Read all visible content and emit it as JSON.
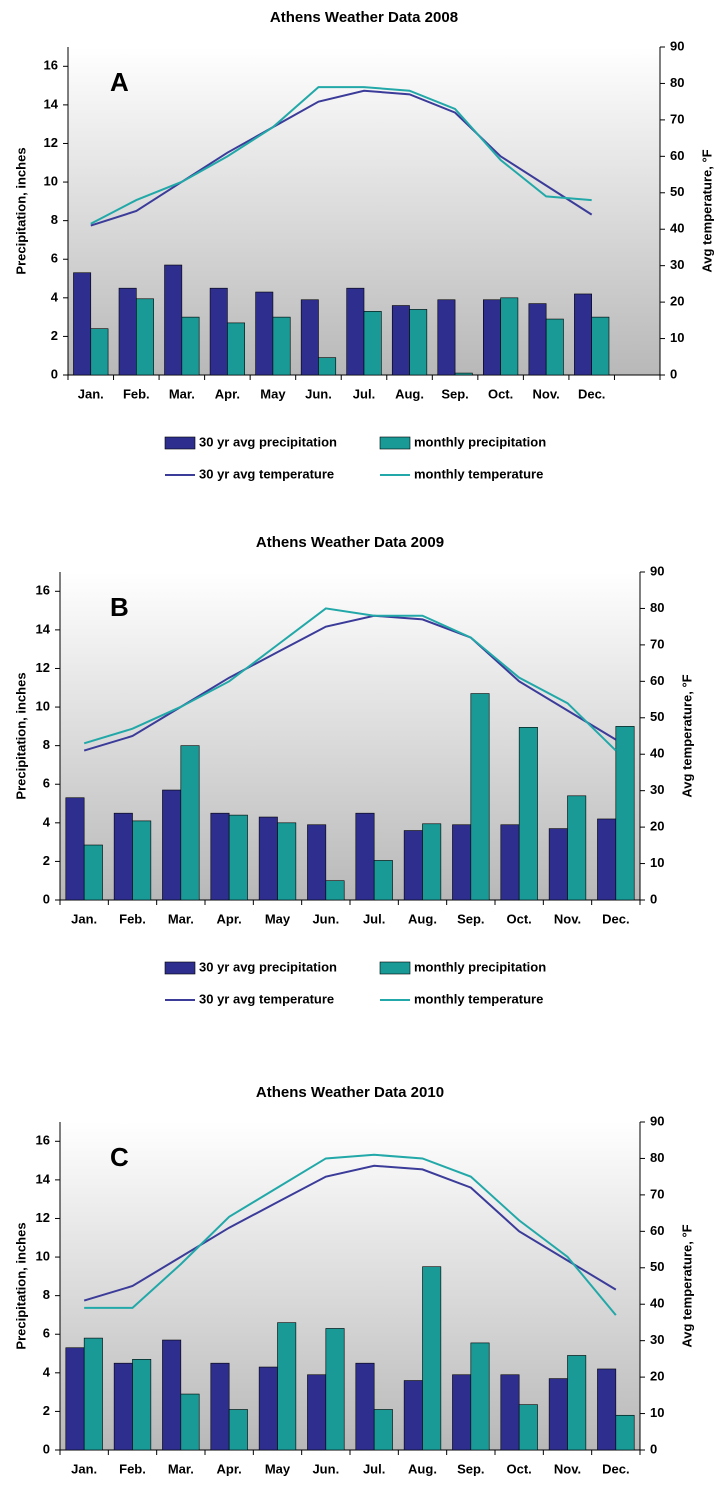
{
  "chart_data": [
    {
      "type": "bar",
      "title": "Athens Weather Data 2008",
      "label": "A",
      "ylabel": "Precipitation, inches",
      "y2label": "Avg temperature, °F",
      "categories": [
        "Jan.",
        "Feb.",
        "Mar.",
        "Apr.",
        "May",
        "Jun.",
        "Jul.",
        "Aug.",
        "Sep.",
        "Oct.",
        "Nov.",
        "Dec.",
        null
      ],
      "series": [
        {
          "name": "30 yr avg precipitation",
          "type": "bar",
          "color": "#2e2e8f",
          "values": [
            5.3,
            4.5,
            5.7,
            4.5,
            4.3,
            3.9,
            4.5,
            3.6,
            3.9,
            3.9,
            3.7,
            4.2,
            null
          ]
        },
        {
          "name": "monthly precipitation",
          "type": "bar",
          "color": "#1a9a96",
          "values": [
            2.4,
            3.95,
            3.0,
            2.7,
            3.0,
            0.9,
            3.3,
            3.4,
            0.1,
            4.0,
            2.9,
            3.0,
            null
          ]
        },
        {
          "name": "30 yr avg temperature",
          "type": "line",
          "axis": "y2",
          "color": "#3b3b9a",
          "values": [
            41,
            45,
            53,
            61,
            68,
            75,
            78,
            77,
            72,
            60,
            52,
            44,
            null
          ]
        },
        {
          "name": "monthly temperature",
          "type": "line",
          "axis": "y2",
          "color": "#22a8a8",
          "values": [
            41.5,
            48,
            53,
            60,
            68,
            79,
            79,
            78,
            73,
            59,
            49,
            48,
            null
          ]
        }
      ],
      "ylim": [
        0,
        17
      ],
      "yticks": [
        0,
        2,
        4,
        6,
        8,
        10,
        12,
        14,
        16
      ],
      "y2lim": [
        0,
        90
      ],
      "y2ticks": [
        0,
        10,
        20,
        30,
        40,
        50,
        60,
        70,
        80,
        90
      ]
    },
    {
      "type": "bar",
      "title": "Athens Weather Data 2009",
      "label": "B",
      "ylabel": "Precipitation, inches",
      "y2label": "Avg temperature, °F",
      "categories": [
        "Jan.",
        "Feb.",
        "Mar.",
        "Apr.",
        "May",
        "Jun.",
        "Jul.",
        "Aug.",
        "Sep.",
        "Oct.",
        "Nov.",
        "Dec."
      ],
      "series": [
        {
          "name": "30 yr avg precipitation",
          "type": "bar",
          "color": "#2e2e8f",
          "values": [
            5.3,
            4.5,
            5.7,
            4.5,
            4.3,
            3.9,
            4.5,
            3.6,
            3.9,
            3.9,
            3.7,
            4.2
          ]
        },
        {
          "name": "monthly precipitation",
          "type": "bar",
          "color": "#1a9a96",
          "values": [
            2.85,
            4.1,
            8.0,
            4.4,
            4.0,
            1.0,
            2.05,
            3.95,
            10.7,
            8.95,
            5.4,
            9.0
          ]
        },
        {
          "name": "30 yr avg temperature",
          "type": "line",
          "axis": "y2",
          "color": "#3b3b9a",
          "values": [
            41,
            45,
            53,
            61,
            68,
            75,
            78,
            77,
            72,
            60,
            52,
            44
          ]
        },
        {
          "name": "monthly temperature",
          "type": "line",
          "axis": "y2",
          "color": "#22a8a8",
          "values": [
            43,
            47,
            53,
            60,
            70,
            80,
            78,
            78,
            72,
            61,
            54,
            41
          ]
        }
      ],
      "ylim": [
        0,
        17
      ],
      "yticks": [
        0,
        2,
        4,
        6,
        8,
        10,
        12,
        14,
        16
      ],
      "y2lim": [
        0,
        90
      ],
      "y2ticks": [
        0,
        10,
        20,
        30,
        40,
        50,
        60,
        70,
        80,
        90
      ]
    },
    {
      "type": "bar",
      "title": "Athens Weather Data 2010",
      "label": "C",
      "ylabel": "Precipitation, inches",
      "y2label": "Avg temperature, °F",
      "categories": [
        "Jan.",
        "Feb.",
        "Mar.",
        "Apr.",
        "May",
        "Jun.",
        "Jul.",
        "Aug.",
        "Sep.",
        "Oct.",
        "Nov.",
        "Dec."
      ],
      "series": [
        {
          "name": "30 yr avg precipitation",
          "type": "bar",
          "color": "#2e2e8f",
          "values": [
            5.3,
            4.5,
            5.7,
            4.5,
            4.3,
            3.9,
            4.5,
            3.6,
            3.9,
            3.9,
            3.7,
            4.2
          ]
        },
        {
          "name": "monthly precipitation",
          "type": "bar",
          "color": "#1a9a96",
          "values": [
            5.8,
            4.7,
            2.9,
            2.1,
            6.6,
            6.3,
            2.1,
            9.5,
            5.55,
            2.35,
            4.9,
            1.8
          ]
        },
        {
          "name": "30 yr avg temperature",
          "type": "line",
          "axis": "y2",
          "color": "#3b3b9a",
          "values": [
            41,
            45,
            53,
            61,
            68,
            75,
            78,
            77,
            72,
            60,
            52,
            44
          ]
        },
        {
          "name": "monthly temperature",
          "type": "line",
          "axis": "y2",
          "color": "#22a8a8",
          "values": [
            39,
            39,
            51,
            64,
            72,
            80,
            81,
            80,
            75,
            63,
            53,
            37
          ]
        }
      ],
      "ylim": [
        0,
        17
      ],
      "yticks": [
        0,
        2,
        4,
        6,
        8,
        10,
        12,
        14,
        16
      ],
      "y2lim": [
        0,
        90
      ],
      "y2ticks": [
        0,
        10,
        20,
        30,
        40,
        50,
        60,
        70,
        80,
        90
      ]
    }
  ]
}
